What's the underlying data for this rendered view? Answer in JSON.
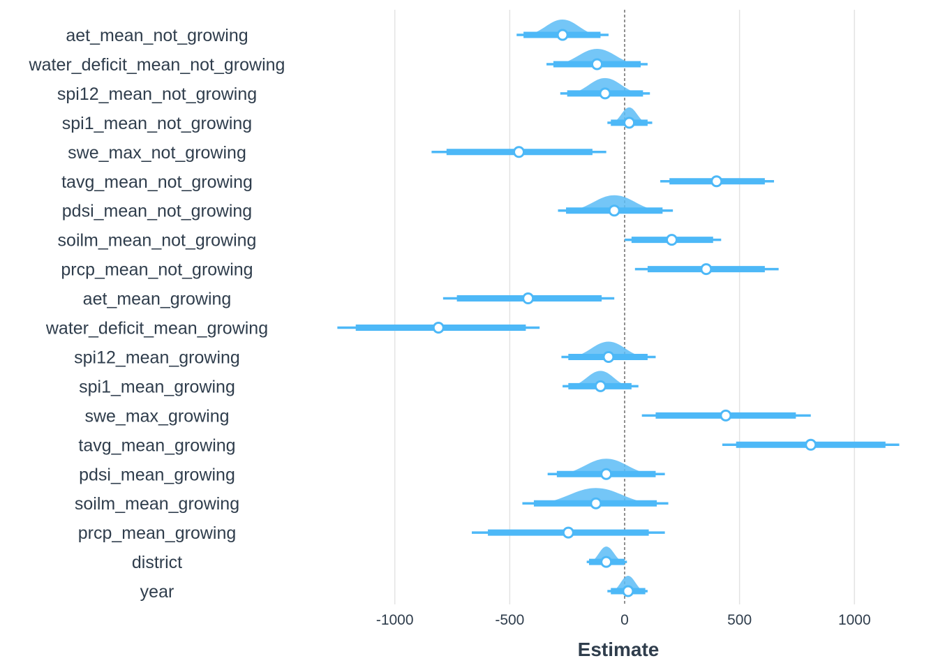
{
  "colors": {
    "interval": "#4db8f7",
    "density": "#5cbcf6",
    "point_fill": "#ffffff"
  },
  "chart_data": {
    "type": "interval",
    "xlabel": "Estimate",
    "xlim": [
      -1300,
      1200
    ],
    "xticks": [
      -1000,
      -500,
      0,
      500,
      1000
    ],
    "xtick_labels": [
      "-1000",
      "-500",
      "0",
      "500",
      "1000"
    ],
    "reference_line": 0,
    "grid": "vertical-major",
    "rows": [
      {
        "label": "aet_mean_not_growing",
        "median": -270,
        "inner": [
          -440,
          -105
        ],
        "outer": [
          -470,
          -70
        ],
        "density": true
      },
      {
        "label": "water_deficit_mean_not_growing",
        "median": -120,
        "inner": [
          -310,
          70
        ],
        "outer": [
          -340,
          100
        ],
        "density": true
      },
      {
        "label": "spi12_mean_not_growing",
        "median": -85,
        "inner": [
          -250,
          80
        ],
        "outer": [
          -280,
          110
        ],
        "density": true
      },
      {
        "label": "spi1_mean_not_growing",
        "median": 20,
        "inner": [
          -60,
          100
        ],
        "outer": [
          -75,
          120
        ],
        "density": true
      },
      {
        "label": "swe_max_not_growing",
        "median": -460,
        "inner": [
          -775,
          -140
        ],
        "outer": [
          -840,
          -80
        ],
        "density": false
      },
      {
        "label": "tavg_mean_not_growing",
        "median": 400,
        "inner": [
          195,
          610
        ],
        "outer": [
          155,
          650
        ],
        "density": false
      },
      {
        "label": "pdsi_mean_not_growing",
        "median": -45,
        "inner": [
          -255,
          165
        ],
        "outer": [
          -290,
          210
        ],
        "density": true
      },
      {
        "label": "soilm_mean_not_growing",
        "median": 205,
        "inner": [
          30,
          385
        ],
        "outer": [
          0,
          420
        ],
        "density": false
      },
      {
        "label": "prcp_mean_not_growing",
        "median": 355,
        "inner": [
          100,
          610
        ],
        "outer": [
          45,
          670
        ],
        "density": false
      },
      {
        "label": "aet_mean_growing",
        "median": -420,
        "inner": [
          -730,
          -100
        ],
        "outer": [
          -790,
          -45
        ],
        "density": false
      },
      {
        "label": "water_deficit_mean_growing",
        "median": -810,
        "inner": [
          -1170,
          -430
        ],
        "outer": [
          -1250,
          -370
        ],
        "density": false
      },
      {
        "label": "spi12_mean_growing",
        "median": -70,
        "inner": [
          -245,
          100
        ],
        "outer": [
          -275,
          135
        ],
        "density": true
      },
      {
        "label": "spi1_mean_growing",
        "median": -105,
        "inner": [
          -245,
          30
        ],
        "outer": [
          -270,
          60
        ],
        "density": true
      },
      {
        "label": "swe_max_growing",
        "median": 440,
        "inner": [
          135,
          745
        ],
        "outer": [
          75,
          810
        ],
        "density": false
      },
      {
        "label": "tavg_mean_growing",
        "median": 810,
        "inner": [
          485,
          1135
        ],
        "outer": [
          425,
          1195
        ],
        "density": false
      },
      {
        "label": "pdsi_mean_growing",
        "median": -80,
        "inner": [
          -295,
          135
        ],
        "outer": [
          -335,
          175
        ],
        "density": true
      },
      {
        "label": "soilm_mean_growing",
        "median": -125,
        "inner": [
          -395,
          140
        ],
        "outer": [
          -445,
          190
        ],
        "density": true
      },
      {
        "label": "prcp_mean_growing",
        "median": -245,
        "inner": [
          -595,
          105
        ],
        "outer": [
          -665,
          175
        ],
        "density": false
      },
      {
        "label": "district",
        "median": -80,
        "inner": [
          -155,
          0
        ],
        "outer": [
          -165,
          10
        ],
        "density": true
      },
      {
        "label": "year",
        "median": 15,
        "inner": [
          -60,
          90
        ],
        "outer": [
          -75,
          100
        ],
        "density": true
      }
    ]
  }
}
